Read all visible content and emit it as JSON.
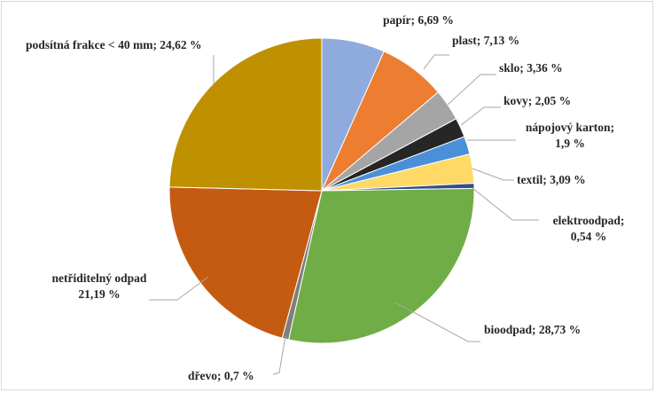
{
  "chart_data": {
    "type": "pie",
    "title": "",
    "slices": [
      {
        "name": "papír",
        "value": 6.69,
        "label": "papír; 6,69 %",
        "color": "#8faadc"
      },
      {
        "name": "plast",
        "value": 7.13,
        "label": "plast; 7,13 %",
        "color": "#ed7d31"
      },
      {
        "name": "sklo",
        "value": 3.36,
        "label": "sklo; 3,36 %",
        "color": "#a5a5a5"
      },
      {
        "name": "kovy",
        "value": 2.05,
        "label": "kovy; 2,05 %",
        "color": "#262626"
      },
      {
        "name": "nápojový karton",
        "value": 1.9,
        "label_lines": [
          "nápojový karton;",
          "1,9 %"
        ],
        "color": "#4a90d9"
      },
      {
        "name": "textil",
        "value": 3.09,
        "label": "textil; 3,09 %",
        "color": "#ffd966"
      },
      {
        "name": "elektroodpad",
        "value": 0.54,
        "label_lines": [
          "elektroodpad;",
          "0,54 %"
        ],
        "color": "#2f4f8f"
      },
      {
        "name": "bioodpad",
        "value": 28.73,
        "label": "bioodpad; 28,73 %",
        "color": "#70ad47"
      },
      {
        "name": "dřevo",
        "value": 0.7,
        "label": "dřevo; 0,7 %",
        "color": "#7f7f7f"
      },
      {
        "name": "netřiditelný odpad",
        "value": 21.19,
        "label_lines": [
          "netřiditelný odpad",
          "21,19 %"
        ],
        "color": "#c55a11"
      },
      {
        "name": "podsítná frakce < 40 mm",
        "value": 24.62,
        "label": "podsítná frakce < 40 mm; 24,62 %",
        "color": "#bf9000"
      }
    ]
  }
}
